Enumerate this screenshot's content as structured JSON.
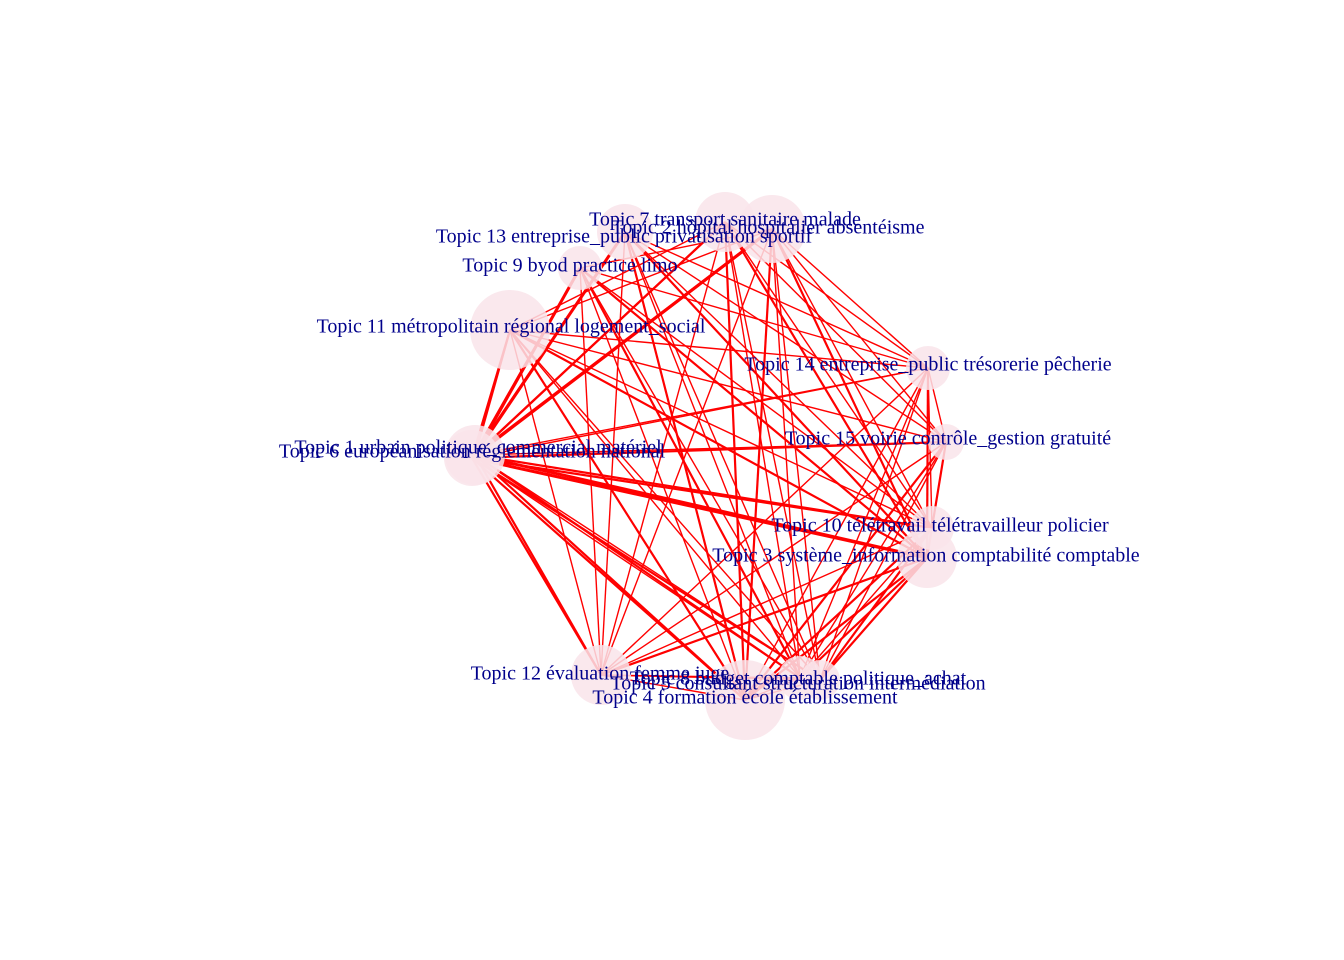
{
  "colors": {
    "background": "#ffffff",
    "edge": "#ff0000",
    "node_fill": "#f9e4ea",
    "label": "#00008b"
  },
  "nodes": [
    {
      "id": "t1",
      "label": "Topic 1 urbain politique_commercial matériel",
      "weight": 2
    },
    {
      "id": "t2",
      "label": "Topic 2 hôpital hospitalier absentéisme",
      "weight": 2
    },
    {
      "id": "t3",
      "label": "Topic 3 système_information comptabilité comptable",
      "weight": 2
    },
    {
      "id": "t4",
      "label": "Topic 4 formation école établissement",
      "weight": 3
    },
    {
      "id": "t5",
      "label": "Topic 5 consultant structuration intermédiation",
      "weight": 1
    },
    {
      "id": "t6",
      "label": "Topic 6 européanisation réglementation national",
      "weight": 2
    },
    {
      "id": "t7",
      "label": "Topic 7 transport sanitaire malade",
      "weight": 1
    },
    {
      "id": "t8",
      "label": "Topic 8 budget comptable politique_achat",
      "weight": 1
    },
    {
      "id": "t9",
      "label": "Topic 9 byod practice limo",
      "weight": 1
    },
    {
      "id": "t10",
      "label": "Topic 10 télétravail télétravailleur policier",
      "weight": 1
    },
    {
      "id": "t11",
      "label": "Topic 11 métropolitain régional logement_social",
      "weight": 3
    },
    {
      "id": "t12",
      "label": "Topic 12 évaluation femme juge",
      "weight": 2
    },
    {
      "id": "t13",
      "label": "Topic 13 entreprise_public privatisation sportif",
      "weight": 1
    },
    {
      "id": "t14",
      "label": "Topic 14 entreprise_public trésorerie pêcherie",
      "weight": 1
    },
    {
      "id": "t15",
      "label": "Topic 15 voirie contrôle_gestion gratuité",
      "weight": 1
    }
  ],
  "edges": [
    [
      "t1",
      "t2",
      3
    ],
    [
      "t1",
      "t3",
      3
    ],
    [
      "t1",
      "t4",
      2
    ],
    [
      "t1",
      "t5",
      1
    ],
    [
      "t1",
      "t7",
      2
    ],
    [
      "t1",
      "t8",
      2
    ],
    [
      "t1",
      "t9",
      3
    ],
    [
      "t1",
      "t10",
      2
    ],
    [
      "t1",
      "t11",
      2
    ],
    [
      "t1",
      "t12",
      2
    ],
    [
      "t1",
      "t13",
      3
    ],
    [
      "t1",
      "t14",
      1
    ],
    [
      "t1",
      "t15",
      1
    ],
    [
      "t6",
      "t2",
      3
    ],
    [
      "t6",
      "t3",
      3
    ],
    [
      "t6",
      "t4",
      2
    ],
    [
      "t6",
      "t5",
      2
    ],
    [
      "t6",
      "t7",
      2
    ],
    [
      "t6",
      "t8",
      1
    ],
    [
      "t6",
      "t9",
      2
    ],
    [
      "t6",
      "t10",
      2
    ],
    [
      "t6",
      "t11",
      2
    ],
    [
      "t6",
      "t12",
      2
    ],
    [
      "t6",
      "t13",
      2
    ],
    [
      "t6",
      "t14",
      1
    ],
    [
      "t6",
      "t15",
      2
    ],
    [
      "t11",
      "t3",
      2
    ],
    [
      "t11",
      "t4",
      2
    ],
    [
      "t11",
      "t5",
      1
    ],
    [
      "t11",
      "t8",
      1
    ],
    [
      "t11",
      "t10",
      1
    ],
    [
      "t11",
      "t12",
      1
    ],
    [
      "t11",
      "t14",
      1
    ],
    [
      "t11",
      "t15",
      1
    ],
    [
      "t11",
      "t2",
      1
    ],
    [
      "t11",
      "t7",
      1
    ],
    [
      "t9",
      "t3",
      2
    ],
    [
      "t9",
      "t4",
      1
    ],
    [
      "t9",
      "t5",
      1
    ],
    [
      "t9",
      "t8",
      2
    ],
    [
      "t9",
      "t10",
      1
    ],
    [
      "t9",
      "t12",
      1
    ],
    [
      "t9",
      "t14",
      1
    ],
    [
      "t9",
      "t2",
      1
    ],
    [
      "t13",
      "t3",
      2
    ],
    [
      "t13",
      "t4",
      2
    ],
    [
      "t13",
      "t5",
      1
    ],
    [
      "t13",
      "t8",
      1
    ],
    [
      "t13",
      "t10",
      1
    ],
    [
      "t13",
      "t12",
      1
    ],
    [
      "t13",
      "t14",
      1
    ],
    [
      "t13",
      "t15",
      1
    ],
    [
      "t7",
      "t3",
      2
    ],
    [
      "t7",
      "t4",
      2
    ],
    [
      "t7",
      "t5",
      1
    ],
    [
      "t7",
      "t8",
      1
    ],
    [
      "t7",
      "t10",
      1
    ],
    [
      "t7",
      "t12",
      1
    ],
    [
      "t7",
      "t14",
      1
    ],
    [
      "t7",
      "t15",
      1
    ],
    [
      "t2",
      "t3",
      2
    ],
    [
      "t2",
      "t4",
      2
    ],
    [
      "t2",
      "t5",
      1
    ],
    [
      "t2",
      "t8",
      1
    ],
    [
      "t2",
      "t10",
      1
    ],
    [
      "t2",
      "t12",
      1
    ],
    [
      "t2",
      "t14",
      1
    ],
    [
      "t2",
      "t15",
      1
    ],
    [
      "t14",
      "t3",
      2
    ],
    [
      "t14",
      "t4",
      1
    ],
    [
      "t14",
      "t5",
      1
    ],
    [
      "t14",
      "t8",
      1
    ],
    [
      "t14",
      "t12",
      1
    ],
    [
      "t14",
      "t10",
      1
    ],
    [
      "t14",
      "t15",
      1
    ],
    [
      "t15",
      "t3",
      2
    ],
    [
      "t15",
      "t4",
      2
    ],
    [
      "t15",
      "t5",
      1
    ],
    [
      "t15",
      "t8",
      1
    ],
    [
      "t15",
      "t12",
      1
    ],
    [
      "t15",
      "t10",
      1
    ],
    [
      "t10",
      "t4",
      2
    ],
    [
      "t10",
      "t5",
      2
    ],
    [
      "t10",
      "t8",
      1
    ],
    [
      "t10",
      "t12",
      1
    ],
    [
      "t10",
      "t3",
      1
    ],
    [
      "t3",
      "t4",
      2
    ],
    [
      "t3",
      "t5",
      2
    ],
    [
      "t3",
      "t8",
      2
    ],
    [
      "t3",
      "t12",
      2
    ],
    [
      "t12",
      "t4",
      1
    ],
    [
      "t12",
      "t5",
      1
    ],
    [
      "t12",
      "t8",
      1
    ],
    [
      "t4",
      "t5",
      1
    ],
    [
      "t4",
      "t8",
      1
    ],
    [
      "t5",
      "t8",
      1
    ]
  ]
}
